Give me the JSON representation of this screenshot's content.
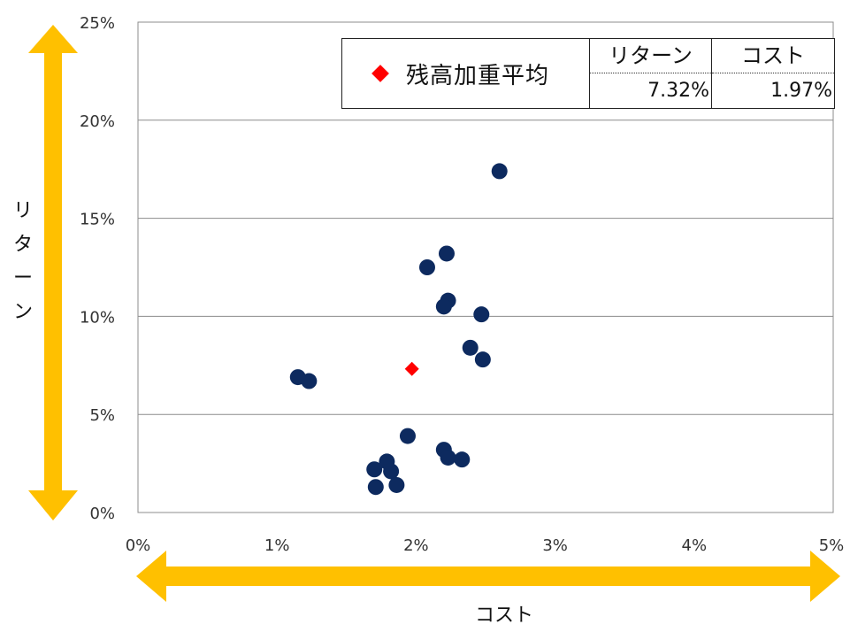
{
  "chart_data": {
    "type": "scatter",
    "xlabel": "コスト",
    "ylabel": "リターン",
    "xlim": [
      0,
      5
    ],
    "ylim": [
      0,
      25
    ],
    "x_ticks": [
      "0%",
      "1%",
      "2%",
      "3%",
      "4%",
      "5%"
    ],
    "y_ticks": [
      "0%",
      "5%",
      "10%",
      "15%",
      "20%",
      "25%"
    ],
    "grid": "horizontal",
    "series": [
      {
        "color": "#0d2a5f",
        "x": [
          2.6,
          2.08,
          2.22,
          2.23,
          2.2,
          2.47,
          2.39,
          2.48,
          1.15,
          1.23,
          1.94,
          2.2,
          2.23,
          2.33,
          1.7,
          1.79,
          1.82,
          1.71,
          1.86
        ],
        "y": [
          17.4,
          12.5,
          13.2,
          10.8,
          10.5,
          10.1,
          8.4,
          7.8,
          6.9,
          6.7,
          3.9,
          3.2,
          2.8,
          2.7,
          2.2,
          2.6,
          2.1,
          1.3,
          1.4
        ]
      },
      {
        "name": "残高加重平均",
        "color": "#ff0000",
        "marker": "diamond",
        "x": [
          1.97
        ],
        "y": [
          7.32
        ]
      }
    ]
  },
  "legend": {
    "label": "残高加重平均",
    "return_header": "リターン",
    "cost_header": "コスト",
    "return_value": "7.32%",
    "cost_value": "1.97%"
  },
  "colors": {
    "arrow": "#ffc000",
    "dots": "#0d2a5f",
    "average": "#ff0000",
    "grid": "#8c8c8c"
  }
}
